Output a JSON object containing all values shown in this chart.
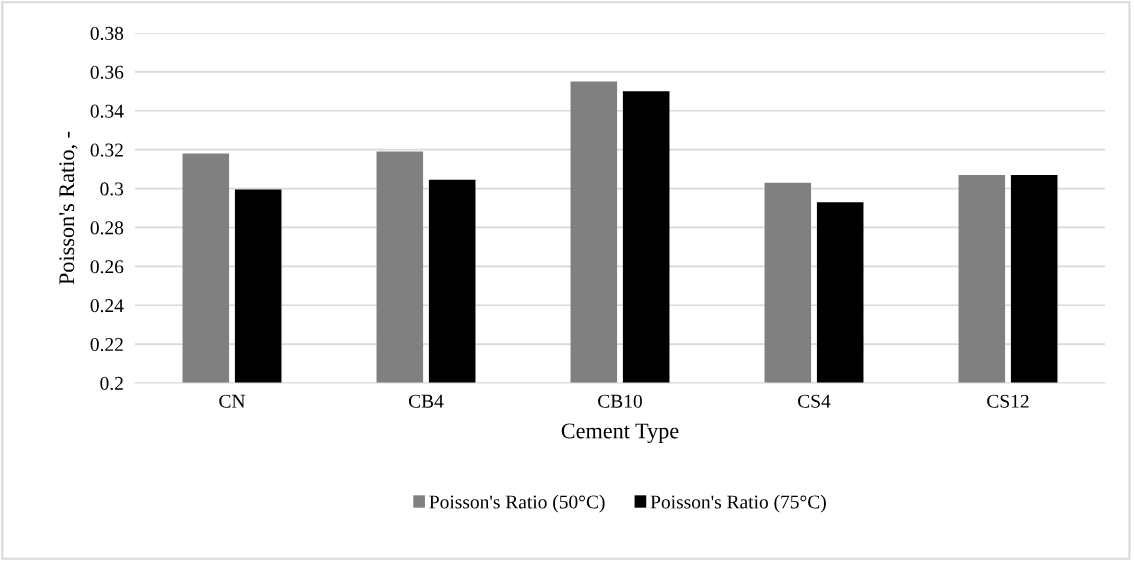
{
  "chart_data": {
    "type": "bar",
    "xlabel": "Cement Type",
    "ylabel": "Poisson's Ratio, -",
    "categories": [
      "CN",
      "CB4",
      "CB10",
      "CS4",
      "CS12"
    ],
    "series": [
      {
        "name": "Poisson's Ratio (50°C)",
        "color": "#808080",
        "values": [
          0.318,
          0.319,
          0.355,
          0.303,
          0.307
        ]
      },
      {
        "name": "Poisson's Ratio (75°C)",
        "color": "#000000",
        "values": [
          0.2995,
          0.3045,
          0.35,
          0.293,
          0.307
        ]
      }
    ],
    "ylim": [
      0.2,
      0.38
    ],
    "yticks": [
      0.2,
      0.22,
      0.24,
      0.26,
      0.28,
      0.3,
      0.32,
      0.34,
      0.36,
      0.38
    ],
    "grid": "y",
    "legend": "bottom"
  }
}
